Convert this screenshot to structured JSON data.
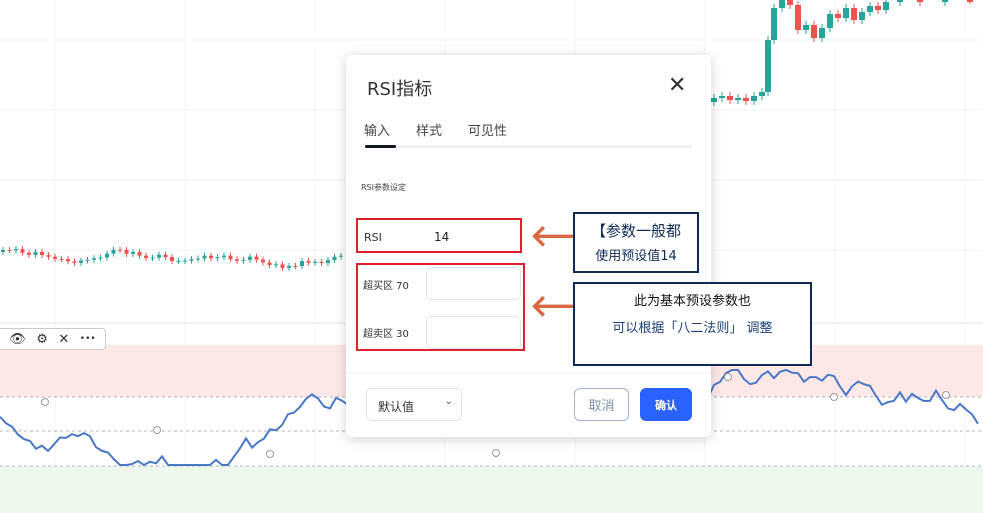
{
  "dialog": {
    "title": "RSI指标",
    "tabs": [
      "输入",
      "样式",
      "可见性"
    ],
    "active_tab": 0,
    "section": "RSI参数设定",
    "fields": [
      {
        "label": "RSI",
        "value": "14"
      },
      {
        "label": "超买区 70",
        "value": ""
      },
      {
        "label": "超卖区 30",
        "value": ""
      }
    ],
    "preset_select": "默认值",
    "cancel": "取消",
    "confirm": "确认"
  },
  "annotations": {
    "note1": [
      "【参数一般都",
      "使用预设值14"
    ],
    "note2": [
      "此为基本预设参数也",
      "可以根据「八二法则」 调整"
    ]
  },
  "toolbar": {
    "icons": [
      "eye-icon",
      "settings-icon",
      "close-icon",
      "more-icon"
    ],
    "labels": [
      "👁",
      "⚙",
      "✕",
      "•••"
    ]
  },
  "colors": {
    "up": "#26a69a",
    "down": "#ef5350",
    "rsi_line": "#4a78c8",
    "accent": "#2962ff",
    "annotation_red": "#e0202a",
    "annotation_navy": "#0f2a55",
    "arrow": "#d9683f"
  }
}
